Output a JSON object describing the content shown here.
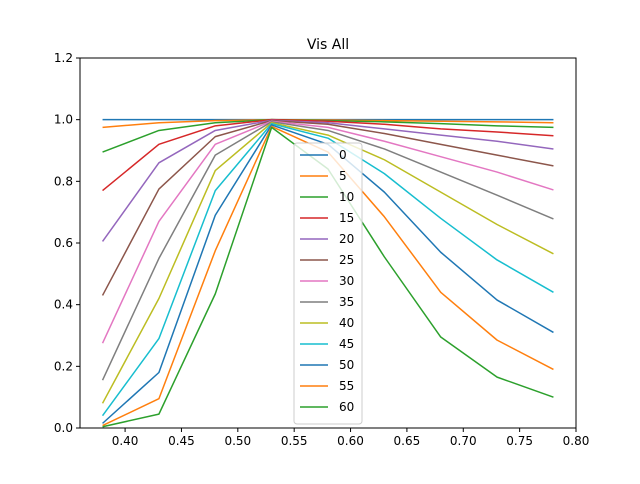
{
  "chart_data": {
    "type": "line",
    "title": "Vis All",
    "xlabel": "",
    "ylabel": "",
    "xlim": [
      0.36,
      0.8
    ],
    "ylim": [
      0.0,
      1.2
    ],
    "x_ticks": [
      0.4,
      0.45,
      0.5,
      0.55,
      0.6,
      0.65,
      0.7,
      0.75,
      0.8
    ],
    "x_tick_labels": [
      "0.40",
      "0.45",
      "0.50",
      "0.55",
      "0.60",
      "0.65",
      "0.70",
      "0.75",
      "0.80"
    ],
    "y_ticks": [
      0.0,
      0.2,
      0.4,
      0.6,
      0.8,
      1.0,
      1.2
    ],
    "y_tick_labels": [
      "0.0",
      "0.2",
      "0.4",
      "0.6",
      "0.8",
      "1.0",
      "1.2"
    ],
    "grid": false,
    "legend_position": "center",
    "x": [
      0.38,
      0.43,
      0.48,
      0.53,
      0.58,
      0.63,
      0.68,
      0.73,
      0.78
    ],
    "series": [
      {
        "name": "0",
        "color": "#1f77b4",
        "values": [
          1.0,
          1.0,
          1.0,
          1.0,
          1.0,
          1.0,
          1.0,
          1.0,
          1.0
        ]
      },
      {
        "name": "5",
        "color": "#ff7f0e",
        "values": [
          0.975,
          0.99,
          0.997,
          1.0,
          0.999,
          0.997,
          0.995,
          0.993,
          0.99
        ]
      },
      {
        "name": "10",
        "color": "#2ca02c",
        "values": [
          0.895,
          0.965,
          0.99,
          1.0,
          0.997,
          0.993,
          0.987,
          0.98,
          0.975
        ]
      },
      {
        "name": "15",
        "color": "#d62728",
        "values": [
          0.77,
          0.92,
          0.98,
          1.0,
          0.995,
          0.985,
          0.97,
          0.96,
          0.948
        ]
      },
      {
        "name": "20",
        "color": "#9467bd",
        "values": [
          0.605,
          0.86,
          0.965,
          0.998,
          0.99,
          0.97,
          0.95,
          0.93,
          0.905
        ]
      },
      {
        "name": "25",
        "color": "#8c564b",
        "values": [
          0.43,
          0.775,
          0.945,
          0.997,
          0.985,
          0.955,
          0.92,
          0.885,
          0.85
        ]
      },
      {
        "name": "30",
        "color": "#e377c2",
        "values": [
          0.275,
          0.67,
          0.92,
          0.995,
          0.975,
          0.93,
          0.88,
          0.83,
          0.772
        ]
      },
      {
        "name": "35",
        "color": "#7f7f7f",
        "values": [
          0.155,
          0.55,
          0.885,
          0.993,
          0.965,
          0.905,
          0.83,
          0.755,
          0.678
        ]
      },
      {
        "name": "40",
        "color": "#bcbd22",
        "values": [
          0.08,
          0.42,
          0.835,
          0.99,
          0.95,
          0.87,
          0.765,
          0.66,
          0.565
        ]
      },
      {
        "name": "45",
        "color": "#17becf",
        "values": [
          0.04,
          0.29,
          0.77,
          0.987,
          0.94,
          0.825,
          0.68,
          0.545,
          0.44
        ]
      },
      {
        "name": "50",
        "color": "#1f77b4",
        "values": [
          0.015,
          0.18,
          0.69,
          0.983,
          0.92,
          0.765,
          0.57,
          0.415,
          0.31
        ]
      },
      {
        "name": "55",
        "color": "#ff7f0e",
        "values": [
          0.008,
          0.095,
          0.575,
          0.978,
          0.895,
          0.685,
          0.44,
          0.285,
          0.19
        ]
      },
      {
        "name": "60",
        "color": "#2ca02c",
        "values": [
          0.004,
          0.045,
          0.435,
          0.975,
          0.84,
          0.555,
          0.295,
          0.165,
          0.1
        ]
      }
    ]
  }
}
